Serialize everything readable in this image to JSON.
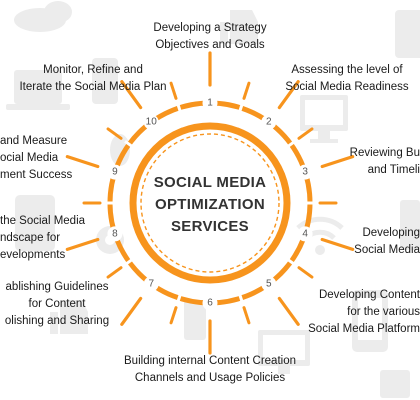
{
  "diagram": {
    "title_lines": [
      "SOCIAL MEDIA",
      "OPTIMIZATION",
      "SERVICES"
    ],
    "accent_color": "#f7941d",
    "steps": [
      {
        "num": "1",
        "lines": [
          "Developing a Strategy",
          "Objectives and Goals"
        ]
      },
      {
        "num": "2",
        "lines": [
          "Assessing the level of",
          "Social Media Readiness"
        ]
      },
      {
        "num": "3",
        "lines": [
          "Reviewing Bu",
          "and Timeli"
        ]
      },
      {
        "num": "4",
        "lines": [
          "Developing",
          "Social Media"
        ]
      },
      {
        "num": "5",
        "lines": [
          "Developing Content",
          "for the various",
          "Social Media Platform"
        ]
      },
      {
        "num": "6",
        "lines": [
          "Building internal Content Creation",
          "Channels and Usage Policies"
        ]
      },
      {
        "num": "7",
        "lines": [
          "ablishing Guidelines",
          "for Content",
          "olishing and Sharing"
        ]
      },
      {
        "num": "8",
        "lines": [
          "the Social Media",
          "ndscape for",
          "evelopments"
        ]
      },
      {
        "num": "9",
        "lines": [
          "and Measure",
          "ocial Media",
          "ment Success"
        ]
      },
      {
        "num": "10",
        "lines": [
          "Monitor, Refine and",
          "Iterate the Social Media Plan"
        ]
      }
    ],
    "background_icons": [
      "phone-icon",
      "monitor-icon",
      "tablet-icon",
      "laptop-icon",
      "thumbs-up-icon",
      "wifi-icon",
      "gear-icon",
      "cloud-icon",
      "mouse-icon"
    ]
  }
}
